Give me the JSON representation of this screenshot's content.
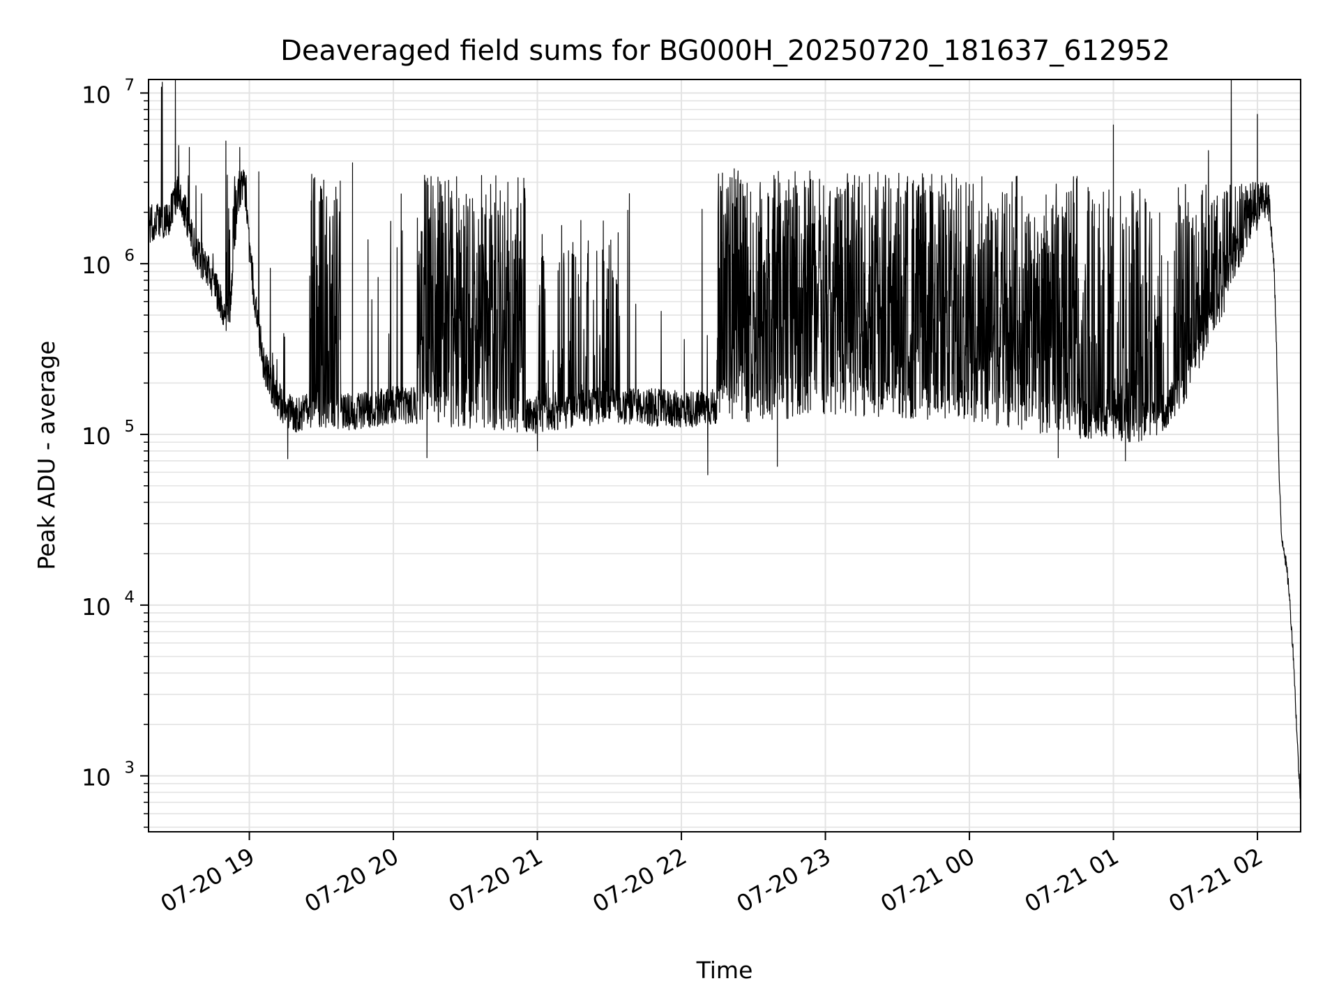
{
  "chart_data": {
    "type": "line",
    "title": "Deaveraged field sums for BG000H_20250720_181637_612952",
    "xlabel": "Time",
    "ylabel": "Peak ADU - average",
    "yscale": "log",
    "ylim": [
      470,
      12000000
    ],
    "xlim": [
      "2025-07-20 18:18",
      "2025-07-21 02:18"
    ],
    "grid": true,
    "line_color": "#000000",
    "x_ticks": [
      {
        "time": "2025-07-20 19:00",
        "label": "07-20 19"
      },
      {
        "time": "2025-07-20 20:00",
        "label": "07-20 20"
      },
      {
        "time": "2025-07-20 21:00",
        "label": "07-20 21"
      },
      {
        "time": "2025-07-20 22:00",
        "label": "07-20 22"
      },
      {
        "time": "2025-07-20 23:00",
        "label": "07-20 23"
      },
      {
        "time": "2025-07-21 00:00",
        "label": "07-21 00"
      },
      {
        "time": "2025-07-21 01:00",
        "label": "07-21 01"
      },
      {
        "time": "2025-07-21 02:00",
        "label": "07-21 02"
      }
    ],
    "y_ticks": [
      {
        "value": 1000,
        "base": "10",
        "exp": "3"
      },
      {
        "value": 10000,
        "base": "10",
        "exp": "4"
      },
      {
        "value": 100000,
        "base": "10",
        "exp": "5"
      },
      {
        "value": 1000000,
        "base": "10",
        "exp": "6"
      },
      {
        "value": 10000000,
        "base": "10",
        "exp": "7"
      }
    ],
    "baseline": [
      [
        "2025-07-20 18:18",
        1700000
      ],
      [
        "2025-07-20 18:22",
        1800000
      ],
      [
        "2025-07-20 18:26",
        1750000
      ],
      [
        "2025-07-20 18:30",
        2600000
      ],
      [
        "2025-07-20 18:33",
        2100000
      ],
      [
        "2025-07-20 18:36",
        1400000
      ],
      [
        "2025-07-20 18:40",
        1050000
      ],
      [
        "2025-07-20 18:44",
        850000
      ],
      [
        "2025-07-20 18:48",
        600000
      ],
      [
        "2025-07-20 18:50",
        480000
      ],
      [
        "2025-07-20 18:52",
        560000
      ],
      [
        "2025-07-20 18:55",
        2400000
      ],
      [
        "2025-07-20 18:58",
        3000000
      ],
      [
        "2025-07-20 19:00",
        1200000
      ],
      [
        "2025-07-20 19:03",
        500000
      ],
      [
        "2025-07-20 19:06",
        250000
      ],
      [
        "2025-07-20 19:10",
        180000
      ],
      [
        "2025-07-20 19:15",
        140000
      ],
      [
        "2025-07-20 19:20",
        130000
      ],
      [
        "2025-07-20 19:30",
        140000
      ],
      [
        "2025-07-20 19:45",
        135000
      ],
      [
        "2025-07-20 20:00",
        150000
      ],
      [
        "2025-07-20 20:30",
        140000
      ],
      [
        "2025-07-20 21:00",
        130000
      ],
      [
        "2025-07-20 21:30",
        150000
      ],
      [
        "2025-07-20 22:00",
        140000
      ],
      [
        "2025-07-20 22:30",
        150000
      ],
      [
        "2025-07-20 23:00",
        170000
      ],
      [
        "2025-07-20 23:30",
        160000
      ],
      [
        "2025-07-21 00:00",
        150000
      ],
      [
        "2025-07-21 00:30",
        130000
      ],
      [
        "2025-07-21 00:50",
        120000
      ],
      [
        "2025-07-21 01:10",
        115000
      ],
      [
        "2025-07-21 01:20",
        130000
      ],
      [
        "2025-07-21 01:25",
        160000
      ],
      [
        "2025-07-21 01:30",
        200000
      ],
      [
        "2025-07-21 01:35",
        300000
      ],
      [
        "2025-07-21 01:40",
        420000
      ],
      [
        "2025-07-21 01:45",
        600000
      ],
      [
        "2025-07-21 01:50",
        950000
      ],
      [
        "2025-07-21 01:55",
        1500000
      ],
      [
        "2025-07-21 02:00",
        2000000
      ],
      [
        "2025-07-21 02:03",
        2400000
      ],
      [
        "2025-07-21 02:05",
        2200000
      ],
      [
        "2025-07-21 02:07",
        900000
      ],
      [
        "2025-07-21 02:08",
        300000
      ],
      [
        "2025-07-21 02:09",
        60000
      ],
      [
        "2025-07-21 02:10",
        25000
      ],
      [
        "2025-07-21 02:11",
        22000
      ],
      [
        "2025-07-21 02:13",
        13000
      ],
      [
        "2025-07-21 02:15",
        5000
      ],
      [
        "2025-07-21 02:17",
        1200
      ],
      [
        "2025-07-21 02:18",
        700
      ]
    ],
    "activity_bands": [
      {
        "start": "2025-07-20 18:50",
        "end": "2025-07-20 19:00",
        "peak": 3500000,
        "level": 0.4
      },
      {
        "start": "2025-07-20 19:25",
        "end": "2025-07-20 19:38",
        "peak": 3500000,
        "level": 0.6
      },
      {
        "start": "2025-07-20 20:10",
        "end": "2025-07-20 20:55",
        "peak": 3300000,
        "level": 0.75
      },
      {
        "start": "2025-07-20 21:00",
        "end": "2025-07-20 21:35",
        "peak": 1800000,
        "level": 0.25
      },
      {
        "start": "2025-07-20 22:15",
        "end": "2025-07-21 00:45",
        "peak": 3500000,
        "level": 0.8
      },
      {
        "start": "2025-07-21 00:45",
        "end": "2025-07-21 01:20",
        "peak": 2800000,
        "level": 0.45
      },
      {
        "start": "2025-07-21 01:25",
        "end": "2025-07-21 02:05",
        "peak": 3000000,
        "level": 0.55
      }
    ],
    "spikes": [
      [
        "2025-07-20 18:35",
        4800000
      ],
      [
        "2025-07-20 18:56",
        4800000
      ],
      [
        "2025-07-20 19:43",
        3900000
      ],
      [
        "2025-07-20 20:13",
        3300000
      ],
      [
        "2025-07-20 22:22",
        3600000
      ],
      [
        "2025-07-20 23:25",
        3300000
      ],
      [
        "2025-07-21 01:00",
        6500000
      ],
      [
        "2025-07-21 02:00",
        7500000
      ]
    ],
    "dips": [
      [
        "2025-07-20 19:16",
        72000
      ],
      [
        "2025-07-20 20:14",
        73000
      ],
      [
        "2025-07-20 21:00",
        80000
      ],
      [
        "2025-07-20 22:11",
        58000
      ],
      [
        "2025-07-20 22:40",
        65000
      ],
      [
        "2025-07-21 00:37",
        73000
      ],
      [
        "2025-07-21 01:05",
        70000
      ]
    ]
  }
}
